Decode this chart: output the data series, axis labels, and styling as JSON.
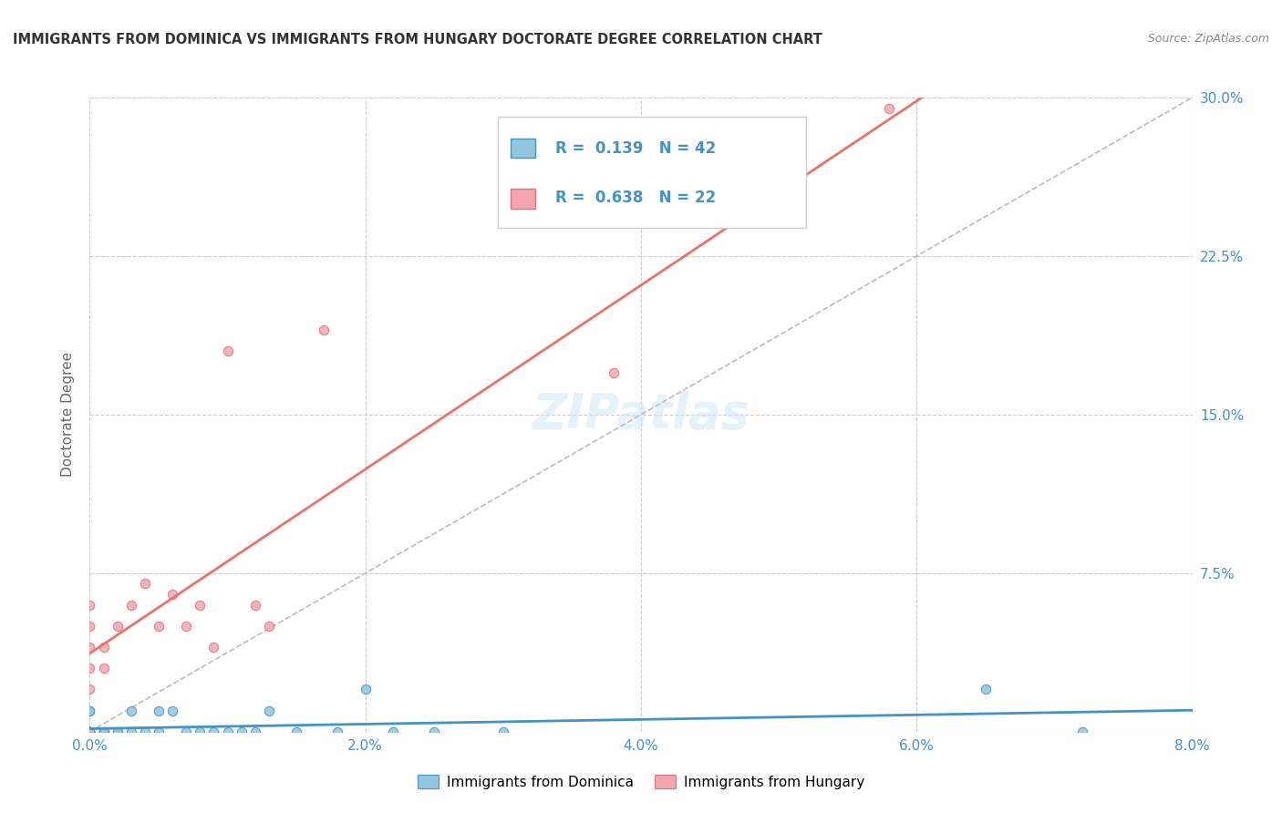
{
  "title": "IMMIGRANTS FROM DOMINICA VS IMMIGRANTS FROM HUNGARY DOCTORATE DEGREE CORRELATION CHART",
  "source_text": "Source: ZipAtlas.com",
  "ylabel": "Doctorate Degree",
  "legend_label1": "Immigrants from Dominica",
  "legend_label2": "Immigrants from Hungary",
  "R1": 0.139,
  "N1": 42,
  "R2": 0.638,
  "N2": 22,
  "xlim": [
    0.0,
    0.08
  ],
  "ylim": [
    0.0,
    0.3
  ],
  "x_ticks": [
    0.0,
    0.02,
    0.04,
    0.06,
    0.08
  ],
  "x_tick_labels": [
    "0.0%",
    "2.0%",
    "4.0%",
    "6.0%",
    "8.0%"
  ],
  "y_ticks": [
    0.0,
    0.075,
    0.15,
    0.225,
    0.3
  ],
  "y_tick_labels": [
    "",
    "7.5%",
    "15.0%",
    "22.5%",
    "30.0%"
  ],
  "color1": "#92C5DE",
  "color2": "#F4A6B0",
  "line_color1": "#4393C3",
  "line_color2": "#E8736B",
  "background_color": "#ffffff",
  "grid_color": "#cccccc",
  "title_color": "#333333",
  "tick_color": "#4393C3",
  "dominica_x": [
    0.0,
    0.0,
    0.0,
    0.0,
    0.0,
    0.0,
    0.0,
    0.0,
    0.0,
    0.0,
    0.0,
    0.0,
    0.0,
    0.0,
    0.0,
    0.0,
    0.001,
    0.001,
    0.001,
    0.002,
    0.002,
    0.003,
    0.003,
    0.004,
    0.005,
    0.005,
    0.006,
    0.007,
    0.008,
    0.009,
    0.01,
    0.011,
    0.012,
    0.013,
    0.015,
    0.018,
    0.02,
    0.022,
    0.025,
    0.03,
    0.065,
    0.072
  ],
  "dominica_y": [
    0.0,
    0.0,
    0.0,
    0.0,
    0.0,
    0.0,
    0.0,
    0.0,
    0.0,
    0.0,
    0.0,
    0.0,
    0.0,
    0.0,
    0.01,
    0.01,
    0.0,
    0.0,
    0.0,
    0.0,
    0.0,
    0.0,
    0.01,
    0.0,
    0.01,
    0.0,
    0.01,
    0.0,
    0.0,
    0.0,
    0.0,
    0.0,
    0.0,
    0.01,
    0.0,
    0.0,
    0.02,
    0.0,
    0.0,
    0.0,
    0.02,
    0.0
  ],
  "hungary_x": [
    0.0,
    0.0,
    0.0,
    0.0,
    0.0,
    0.0,
    0.001,
    0.001,
    0.002,
    0.003,
    0.004,
    0.005,
    0.006,
    0.007,
    0.008,
    0.009,
    0.01,
    0.012,
    0.013,
    0.017,
    0.038,
    0.058
  ],
  "hungary_y": [
    0.0,
    0.02,
    0.03,
    0.04,
    0.05,
    0.06,
    0.03,
    0.04,
    0.05,
    0.06,
    0.07,
    0.05,
    0.065,
    0.05,
    0.06,
    0.04,
    0.18,
    0.06,
    0.05,
    0.19,
    0.17,
    0.295
  ]
}
